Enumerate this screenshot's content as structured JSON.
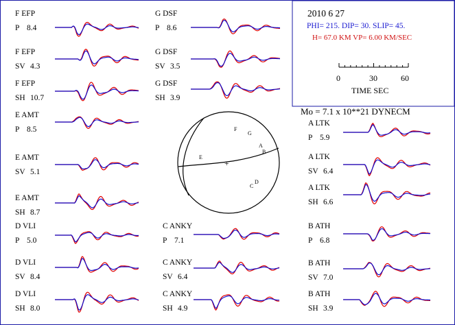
{
  "header": {
    "date": "2010   6 27",
    "mechanism": "PHI= 215.  DIP= 30.  SLIP=  45.",
    "depth_velocity": "H= 67.0  KM   VP= 6.00 KM/SEC",
    "moment": "Mo =   7.1  x 10**21  DYNECM"
  },
  "time_scale": {
    "ticks": [
      "0",
      "30",
      "60"
    ],
    "label": "TIME   SEC"
  },
  "focal_sphere": {
    "center_mark": "+",
    "stations": [
      {
        "id": "F",
        "label": "F"
      },
      {
        "id": "G",
        "label": "G"
      },
      {
        "id": "A",
        "label": "A"
      },
      {
        "id": "B",
        "label": "B"
      },
      {
        "id": "E",
        "label": "E"
      },
      {
        "id": "C",
        "label": "C"
      },
      {
        "id": "D",
        "label": "D"
      }
    ]
  },
  "colors": {
    "observed": "#1010d0",
    "synthetic": "#e00000",
    "frame": "#1a1aa6",
    "mechanism_text": "#1a1ad0",
    "depth_text": "#d01010"
  },
  "traces": [
    {
      "station": "F EFP",
      "phase": "P",
      "amp": "8.4"
    },
    {
      "station": "F EFP",
      "phase": "SV",
      "amp": "4.3"
    },
    {
      "station": "F EFP",
      "phase": "SH",
      "amp": "10.7"
    },
    {
      "station": "E AMT",
      "phase": "P",
      "amp": "8.5"
    },
    {
      "station": "E AMT",
      "phase": "SV",
      "amp": "5.1"
    },
    {
      "station": "E AMT",
      "phase": "SH",
      "amp": "8.7"
    },
    {
      "station": "D VLI",
      "phase": "P",
      "amp": "5.0"
    },
    {
      "station": "D VLI",
      "phase": "SV",
      "amp": "8.4"
    },
    {
      "station": "D VLI",
      "phase": "SH",
      "amp": "8.0"
    },
    {
      "station": "G DSF",
      "phase": "P",
      "amp": "8.6"
    },
    {
      "station": "G DSF",
      "phase": "SV",
      "amp": "3.5"
    },
    {
      "station": "G DSF",
      "phase": "SH",
      "amp": "3.9"
    },
    {
      "station": "C ANKY",
      "phase": "P",
      "amp": "7.1"
    },
    {
      "station": "C ANKY",
      "phase": "SV",
      "amp": "6.4"
    },
    {
      "station": "C ANKY",
      "phase": "SH",
      "amp": "4.9"
    },
    {
      "station": "A LTK",
      "phase": "P",
      "amp": "5.9"
    },
    {
      "station": "A LTK",
      "phase": "SV",
      "amp": "6.4"
    },
    {
      "station": "A LTK",
      "phase": "SH",
      "amp": "6.6"
    },
    {
      "station": "B ATH",
      "phase": "P",
      "amp": "6.8"
    },
    {
      "station": "B ATH",
      "phase": "SV",
      "amp": "7.0"
    },
    {
      "station": "B ATH",
      "phase": "SH",
      "amp": "3.9"
    }
  ]
}
